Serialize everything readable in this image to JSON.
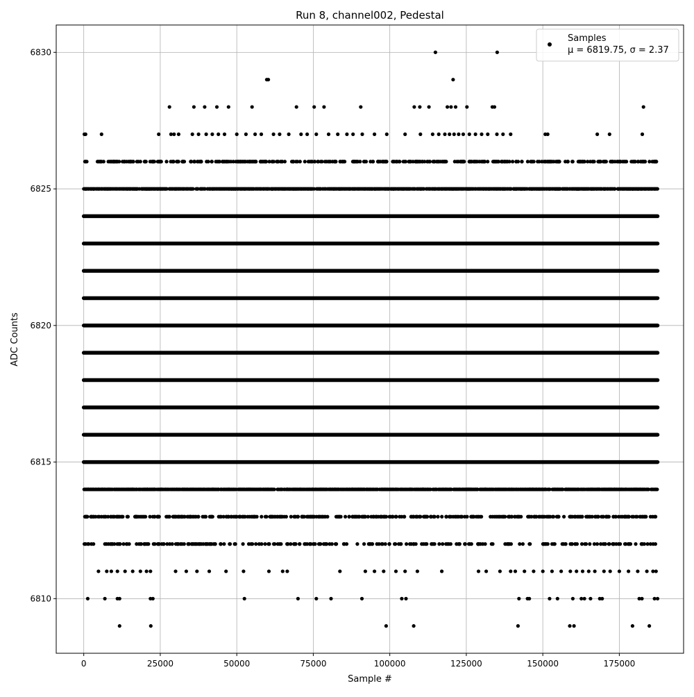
{
  "chart_data": {
    "type": "scatter",
    "title": "Run 8, channel002, Pedestal",
    "xlabel": "Sample #",
    "ylabel": "ADC Counts",
    "xlim": [
      -9000,
      196000
    ],
    "ylim": [
      6808,
      6831
    ],
    "xticks": [
      0,
      25000,
      50000,
      75000,
      100000,
      125000,
      150000,
      175000
    ],
    "xtick_labels": [
      "0",
      "25000",
      "50000",
      "75000",
      "100000",
      "125000",
      "150000",
      "175000"
    ],
    "yticks": [
      6810,
      6815,
      6820,
      6825,
      6830
    ],
    "ytick_labels": [
      "6810",
      "6815",
      "6820",
      "6825",
      "6830"
    ],
    "grid": true,
    "legend": {
      "placement": "top-right",
      "entries": [
        {
          "label": "Samples",
          "stats": "μ = 6819.75, σ = 2.37",
          "marker": "dot",
          "color": "#000000"
        }
      ]
    },
    "marker_color": "#000000",
    "sample_range": [
      0,
      187500
    ],
    "series": [
      {
        "name": "Samples",
        "dense_levels": [
          6815,
          6816,
          6817,
          6818,
          6819,
          6820,
          6821,
          6822,
          6823,
          6824
        ],
        "semi_dense_levels": [
          6814,
          6825
        ],
        "moderate_levels": [
          6813,
          6826
        ],
        "sparse_points": [
          {
            "y": 6830,
            "x": [
              114900,
              135100
            ]
          },
          {
            "y": 6829,
            "x": [
              59800,
              60300,
              120700
            ]
          },
          {
            "y": 6828,
            "x": [
              28000,
              36000,
              39500,
              43500,
              47300,
              55000,
              69500,
              75300,
              78500,
              90500,
              108000,
              109800,
              112800,
              118800,
              120000,
              121500,
              125200,
              133500,
              134200,
              182900
            ]
          },
          {
            "y": 6827,
            "x": [
              200,
              600,
              5800,
              24500,
              28500,
              29500,
              31000,
              35500,
              37500,
              40000,
              42000,
              44000,
              46000,
              50000,
              53000,
              56000,
              58000,
              62000,
              64000,
              67000,
              71000,
              73000,
              76000,
              80000,
              83000,
              86000,
              88000,
              91000,
              95000,
              99000,
              105000,
              110000,
              114000,
              116000,
              118000,
              119500,
              121000,
              122500,
              124000,
              126000,
              128000,
              130000,
              132000,
              135000,
              137000,
              139500,
              150800,
              151600,
              167800,
              171800,
              182500
            ]
          },
          {
            "y": 6811,
            "x": [
              4800,
              7500,
              9000,
              11000,
              13500,
              16000,
              18500,
              20500,
              21800,
              30000,
              33500,
              37000,
              41000,
              46500,
              52200,
              60500,
              65000,
              66500,
              83700,
              92000,
              95000,
              98000,
              102000,
              105000,
              109000,
              117000,
              129000,
              131500,
              136000,
              139500,
              141000,
              144000,
              147000,
              150000,
              153000,
              156000,
              159000,
              161000,
              163000,
              165000,
              167000,
              170000,
              172000,
              175000,
              178000,
              181000,
              184000,
              186000,
              187000
            ]
          },
          {
            "y": 6810,
            "x": [
              1300,
              6900,
              11000,
              11700,
              21800,
              22600,
              52500,
              70000,
              76000,
              80800,
              90900,
              103900,
              105300,
              142200,
              145000,
              145600,
              152200,
              154800,
              159800,
              162600,
              163600,
              165600,
              168600,
              169400,
              181500,
              182400,
              186500,
              187500
            ]
          },
          {
            "y": 6809,
            "x": [
              11700,
              21900,
              98800,
              107800,
              141900,
              158800,
              160200,
              179300,
              184800
            ]
          }
        ]
      }
    ]
  }
}
